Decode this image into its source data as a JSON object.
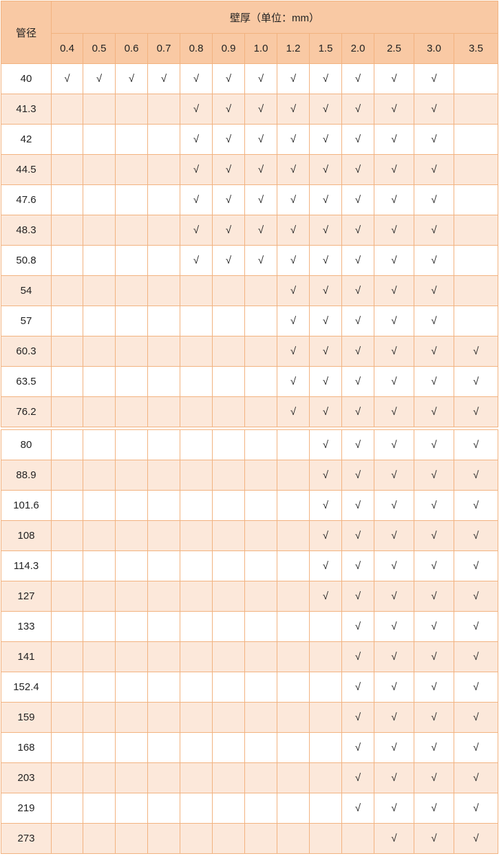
{
  "table": {
    "corner": "管径",
    "title": "壁厚（单位：mm）",
    "thicknesses": [
      "0.4",
      "0.5",
      "0.6",
      "0.7",
      "0.8",
      "0.9",
      "1.0",
      "1.2",
      "1.5",
      "2.0",
      "2.5",
      "3.0",
      "3.5"
    ],
    "rows": [
      {
        "diameter": "40",
        "cells": [
          "√",
          "√",
          "√",
          "√",
          "√",
          "√",
          "√",
          "√",
          "√",
          "√",
          "√",
          "√",
          null
        ]
      },
      {
        "diameter": "41.3",
        "cells": [
          null,
          null,
          null,
          null,
          "√",
          "√",
          "√",
          "√",
          "√",
          "√",
          "√",
          "√",
          null
        ]
      },
      {
        "diameter": "42",
        "cells": [
          null,
          null,
          null,
          null,
          "√",
          "√",
          "√",
          "√",
          "√",
          "√",
          "√",
          "√",
          null
        ]
      },
      {
        "diameter": "44.5",
        "cells": [
          null,
          null,
          null,
          null,
          "√",
          "√",
          "√",
          "√",
          "√",
          "√",
          "√",
          "√",
          null
        ]
      },
      {
        "diameter": "47.6",
        "cells": [
          null,
          null,
          null,
          null,
          "√",
          "√",
          "√",
          "√",
          "√",
          "√",
          "√",
          "√",
          null
        ]
      },
      {
        "diameter": "48.3",
        "cells": [
          null,
          null,
          null,
          null,
          "√",
          "√",
          "√",
          "√",
          "√",
          "√",
          "√",
          "√",
          null
        ]
      },
      {
        "diameter": "50.8",
        "cells": [
          null,
          null,
          null,
          null,
          "√",
          "√",
          "√",
          "√",
          "√",
          "√",
          "√",
          "√",
          null
        ]
      },
      {
        "diameter": "54",
        "cells": [
          null,
          null,
          null,
          null,
          null,
          null,
          null,
          "√",
          "√",
          "√",
          "√",
          "√",
          null
        ]
      },
      {
        "diameter": "57",
        "cells": [
          null,
          null,
          null,
          null,
          null,
          null,
          null,
          "√",
          "√",
          "√",
          "√",
          "√",
          null
        ]
      },
      {
        "diameter": "60.3",
        "cells": [
          null,
          null,
          null,
          null,
          null,
          null,
          null,
          "√",
          "√",
          "√",
          "√",
          "√",
          "√"
        ]
      },
      {
        "diameter": "63.5",
        "cells": [
          null,
          null,
          null,
          null,
          null,
          null,
          null,
          "√",
          "√",
          "√",
          "√",
          "√",
          "√"
        ]
      },
      {
        "diameter": "76.2",
        "cells": [
          null,
          null,
          null,
          null,
          null,
          null,
          null,
          "√",
          "√",
          "√",
          "√",
          "√",
          "√"
        ]
      },
      {
        "diameter": "80",
        "cells": [
          null,
          null,
          null,
          null,
          null,
          null,
          null,
          null,
          "√",
          "√",
          "√",
          "√",
          "√"
        ]
      },
      {
        "diameter": "88.9",
        "cells": [
          null,
          null,
          null,
          null,
          null,
          null,
          null,
          null,
          "√",
          "√",
          "√",
          "√",
          "√"
        ]
      },
      {
        "diameter": "101.6",
        "cells": [
          null,
          null,
          null,
          null,
          null,
          null,
          null,
          null,
          "√",
          "√",
          "√",
          "√",
          "√"
        ]
      },
      {
        "diameter": "108",
        "cells": [
          null,
          null,
          null,
          null,
          null,
          null,
          null,
          null,
          "√",
          "√",
          "√",
          "√",
          "√"
        ]
      },
      {
        "diameter": "114.3",
        "cells": [
          null,
          null,
          null,
          null,
          null,
          null,
          null,
          null,
          "√",
          "√",
          "√",
          "√",
          "√"
        ]
      },
      {
        "diameter": "127",
        "cells": [
          null,
          null,
          null,
          null,
          null,
          null,
          null,
          null,
          "√",
          "√",
          "√",
          "√",
          "√"
        ]
      },
      {
        "diameter": "133",
        "cells": [
          null,
          null,
          null,
          null,
          null,
          null,
          null,
          null,
          null,
          "√",
          "√",
          "√",
          "√"
        ]
      },
      {
        "diameter": "141",
        "cells": [
          null,
          null,
          null,
          null,
          null,
          null,
          null,
          null,
          null,
          "√",
          "√",
          "√",
          "√"
        ]
      },
      {
        "diameter": "152.4",
        "cells": [
          null,
          null,
          null,
          null,
          null,
          null,
          null,
          null,
          null,
          "√",
          "√",
          "√",
          "√"
        ]
      },
      {
        "diameter": "159",
        "cells": [
          null,
          null,
          null,
          null,
          null,
          null,
          null,
          null,
          null,
          "√",
          "√",
          "√",
          "√"
        ]
      },
      {
        "diameter": "168",
        "cells": [
          null,
          null,
          null,
          null,
          null,
          null,
          null,
          null,
          null,
          "√",
          "√",
          "√",
          "√"
        ]
      },
      {
        "diameter": "203",
        "cells": [
          null,
          null,
          null,
          null,
          null,
          null,
          null,
          null,
          null,
          "√",
          "√",
          "√",
          "√"
        ]
      },
      {
        "diameter": "219",
        "cells": [
          null,
          null,
          null,
          null,
          null,
          null,
          null,
          null,
          null,
          "√",
          "√",
          "√",
          "√"
        ]
      },
      {
        "diameter": "273",
        "cells": [
          null,
          null,
          null,
          null,
          null,
          null,
          null,
          null,
          null,
          null,
          "√",
          "√",
          "√"
        ]
      }
    ]
  }
}
